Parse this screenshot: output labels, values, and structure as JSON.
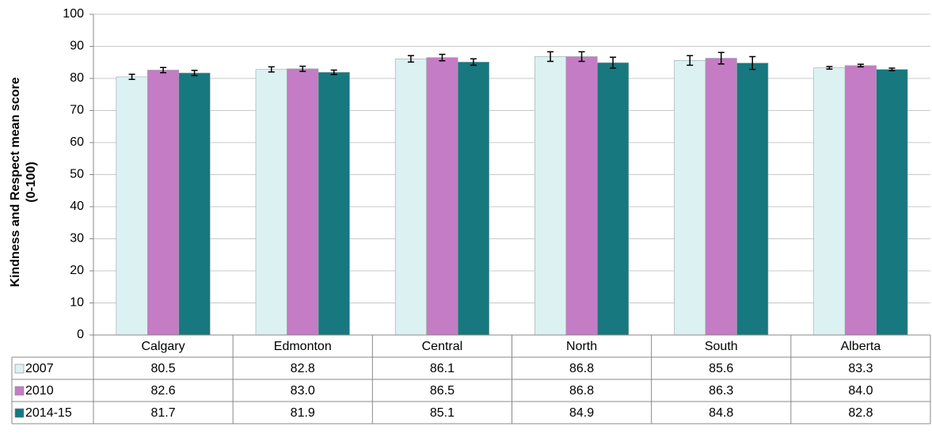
{
  "chart_data": {
    "type": "bar",
    "ylabel": [
      "Kindness and Respect mean score",
      "(0-100)"
    ],
    "categories": [
      "Calgary",
      "Edmonton",
      "Central",
      "North",
      "South",
      "Alberta"
    ],
    "series": [
      {
        "name": "2007",
        "color": "#dcf1f1",
        "values": [
          80.5,
          82.8,
          86.1,
          86.8,
          85.6,
          83.3
        ],
        "value_labels": [
          "80.5",
          "82.8",
          "86.1",
          "86.8",
          "85.6",
          "83.3"
        ],
        "errors": [
          0.8,
          0.8,
          1.0,
          1.5,
          1.5,
          0.4
        ]
      },
      {
        "name": "2010",
        "color": "#c47cc4",
        "values": [
          82.6,
          83.0,
          86.5,
          86.8,
          86.3,
          84.0
        ],
        "value_labels": [
          "82.6",
          "83.0",
          "86.5",
          "86.8",
          "86.3",
          "84.0"
        ],
        "errors": [
          0.8,
          0.8,
          1.0,
          1.5,
          1.8,
          0.4
        ]
      },
      {
        "name": "2014-15",
        "color": "#17787f",
        "values": [
          81.7,
          81.9,
          85.1,
          84.9,
          84.8,
          82.8
        ],
        "value_labels": [
          "81.7",
          "81.9",
          "85.1",
          "84.9",
          "84.8",
          "82.8"
        ],
        "errors": [
          0.8,
          0.7,
          1.0,
          1.7,
          2.0,
          0.4
        ]
      }
    ],
    "ylim": [
      0,
      100
    ],
    "yticks": [
      0,
      10,
      20,
      30,
      40,
      50,
      60,
      70,
      80,
      90,
      100
    ],
    "grid": true
  }
}
